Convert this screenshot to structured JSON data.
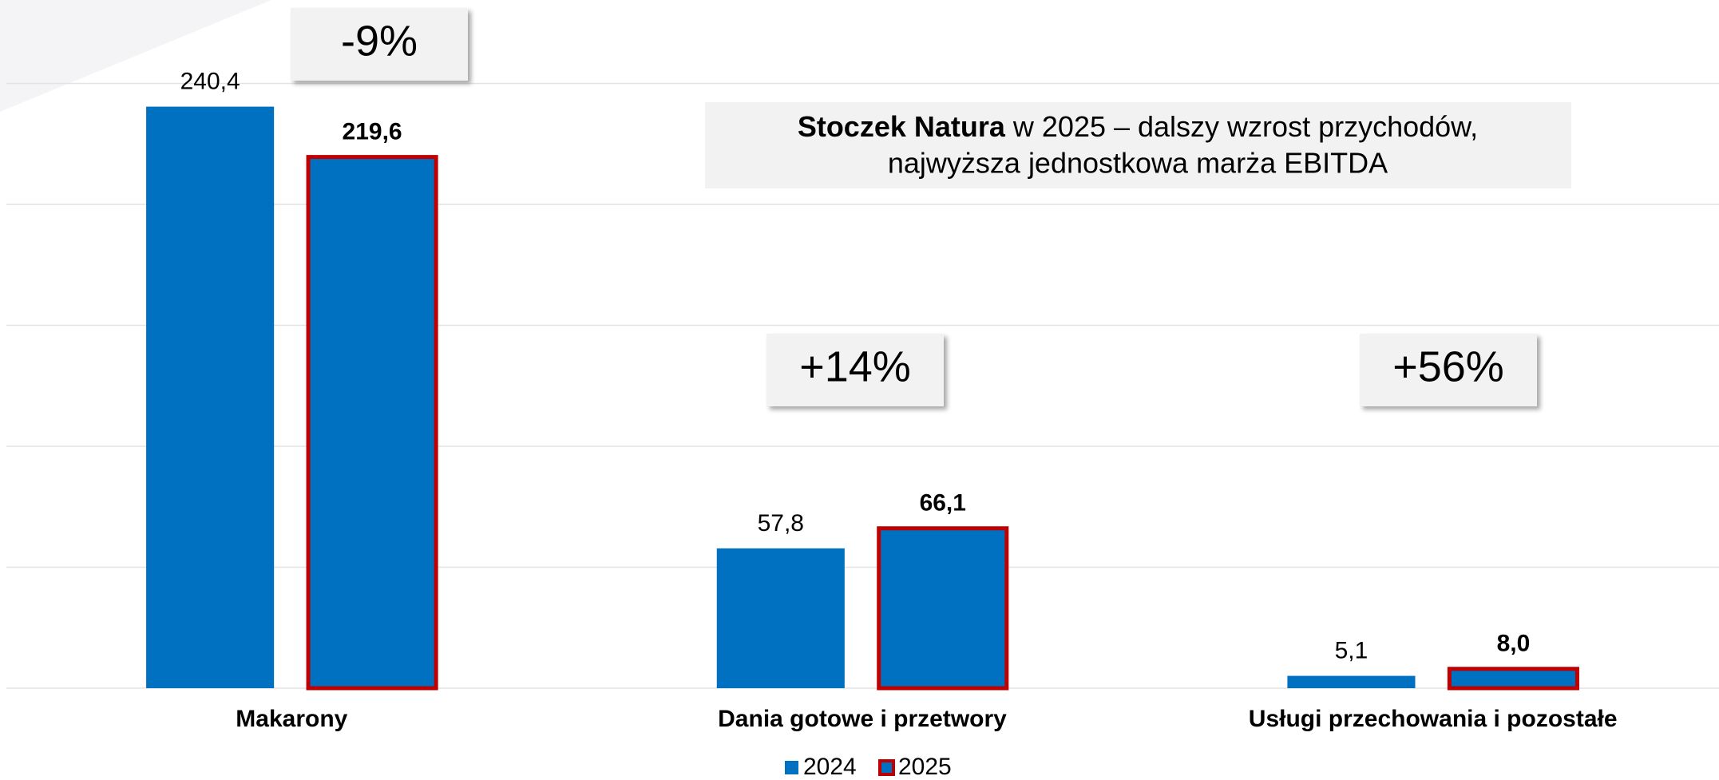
{
  "chart_data": {
    "type": "bar",
    "title": [
      "Stoczek Natura",
      "w 2025 – dalszy wzrost przychodów,",
      "najwyższa jednostkowa marża EBITDA"
    ],
    "categories": [
      "Makarony",
      "Dania gotowe i przetwory",
      "Usługi przechowania i pozostałe"
    ],
    "series": [
      {
        "name": "2024",
        "color": "#0070c0",
        "values": [
          240.4,
          57.8,
          5.1
        ],
        "value_labels": [
          "240,4",
          "57,8",
          "5,1"
        ]
      },
      {
        "name": "2025",
        "color": "#0070c0",
        "border": "#c00000",
        "values": [
          219.6,
          66.1,
          8.0
        ],
        "value_labels": [
          "219,6",
          "66,1",
          "8,0"
        ]
      }
    ],
    "annotations": [
      "-9%",
      "+14%",
      "+56%"
    ],
    "ylim": [
      0,
      250
    ],
    "yticks": [
      0,
      50,
      100,
      150,
      200,
      250
    ],
    "grid": true,
    "legend": "bottom"
  }
}
